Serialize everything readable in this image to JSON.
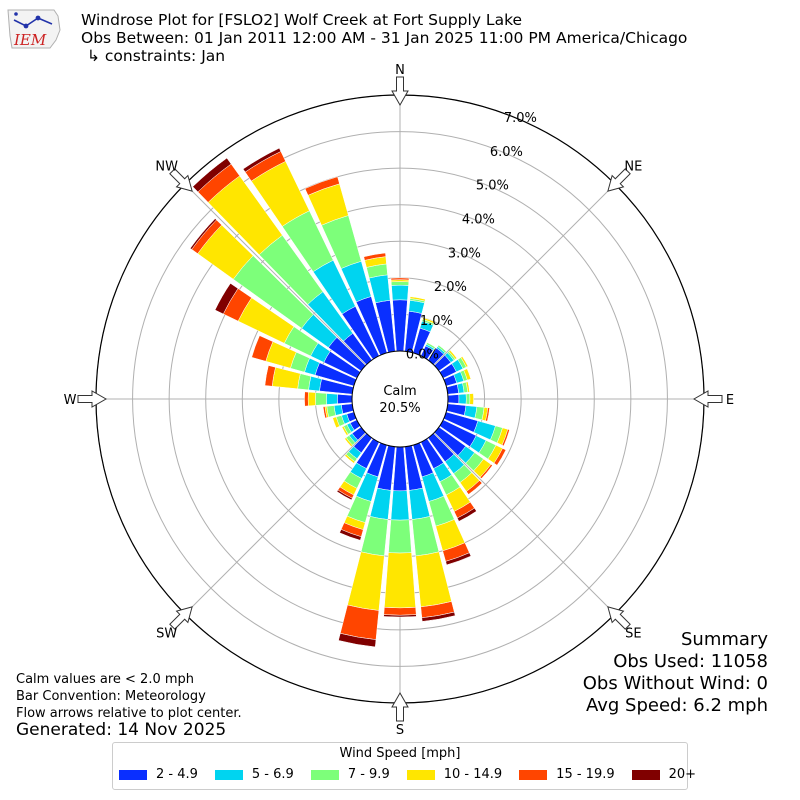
{
  "title": {
    "line1": "Windrose Plot for [FSLO2] Wolf Creek at Fort Supply Lake",
    "line2": "Obs Between: 01 Jan 2011 12:00 AM - 31 Jan 2025 11:00 PM America/Chicago",
    "line3": "↳ constraints: Jan"
  },
  "logo": {
    "text": "IEM"
  },
  "notes": {
    "calm_def": "Calm values are < 2.0 mph",
    "convention": "Bar Convention: Meteorology",
    "flow": "Flow arrows relative to plot center.",
    "generated": "Generated: 14 Nov 2025"
  },
  "summary": {
    "heading": "Summary",
    "obs_used": "Obs Used: 11058",
    "obs_without_wind": "Obs Without Wind: 0",
    "avg_speed": "Avg Speed: 6.2 mph"
  },
  "calm": {
    "label": "Calm",
    "value": "20.5%"
  },
  "chart_data": {
    "type": "windrose",
    "radial_ticks": [
      "0.0%",
      "1.0%",
      "2.0%",
      "3.0%",
      "4.0%",
      "5.0%",
      "6.0%",
      "7.0%"
    ],
    "radial_max": 7.0,
    "compass_labels": [
      "N",
      "NE",
      "E",
      "SE",
      "S",
      "SW",
      "W",
      "NW"
    ],
    "legend_title": "Wind Speed [mph]",
    "bins": [
      {
        "label": "2 - 4.9",
        "color": "#0a2fff"
      },
      {
        "label": "5 - 6.9",
        "color": "#00d4f0"
      },
      {
        "label": "7 - 9.9",
        "color": "#7dff7a"
      },
      {
        "label": "10 - 14.9",
        "color": "#ffe600"
      },
      {
        "label": "15 - 19.9",
        "color": "#ff4500"
      },
      {
        "label": "20+",
        "color": "#800000"
      }
    ],
    "directions_deg": [
      0,
      10,
      20,
      30,
      40,
      50,
      60,
      70,
      80,
      90,
      100,
      110,
      120,
      130,
      140,
      150,
      160,
      170,
      180,
      190,
      200,
      210,
      220,
      230,
      240,
      250,
      260,
      270,
      280,
      290,
      300,
      310,
      320,
      330,
      340,
      350
    ],
    "cumulative": [
      [
        1.4,
        1.8,
        1.9,
        1.95,
        2.0,
        2.0
      ],
      [
        1.1,
        1.4,
        1.45,
        1.5,
        1.5,
        1.5
      ],
      [
        0.7,
        0.9,
        0.95,
        1.0,
        1.0,
        1.0
      ],
      [
        0.3,
        0.35,
        0.4,
        0.4,
        0.4,
        0.4
      ],
      [
        0.4,
        0.45,
        0.5,
        0.5,
        0.5,
        0.5
      ],
      [
        0.4,
        0.5,
        0.55,
        0.6,
        0.6,
        0.6
      ],
      [
        0.4,
        0.6,
        0.7,
        0.75,
        0.75,
        0.75
      ],
      [
        0.3,
        0.5,
        0.6,
        0.7,
        0.7,
        0.7
      ],
      [
        0.3,
        0.45,
        0.55,
        0.6,
        0.6,
        0.6
      ],
      [
        0.3,
        0.5,
        0.6,
        0.7,
        0.7,
        0.7
      ],
      [
        0.5,
        0.8,
        1.0,
        1.1,
        1.15,
        1.15
      ],
      [
        0.9,
        1.4,
        1.6,
        1.75,
        1.8,
        1.8
      ],
      [
        1.0,
        1.3,
        1.6,
        1.8,
        1.9,
        1.9
      ],
      [
        0.9,
        1.2,
        1.5,
        1.75,
        1.8,
        1.8
      ],
      [
        0.8,
        1.2,
        1.5,
        1.8,
        1.9,
        1.9
      ],
      [
        0.8,
        1.2,
        1.6,
        2.1,
        2.3,
        2.4
      ],
      [
        0.9,
        1.6,
        2.3,
        3.0,
        3.3,
        3.4
      ],
      [
        1.2,
        2.0,
        3.0,
        4.4,
        4.7,
        4.8
      ],
      [
        1.2,
        2.0,
        2.9,
        4.4,
        4.6,
        4.65
      ],
      [
        1.2,
        2.0,
        3.0,
        4.5,
        5.3,
        5.5
      ],
      [
        0.9,
        1.6,
        2.2,
        2.4,
        2.6,
        2.7
      ],
      [
        0.8,
        1.1,
        1.4,
        1.6,
        1.7,
        1.75
      ],
      [
        0.5,
        0.7,
        0.8,
        0.85,
        0.85,
        0.85
      ],
      [
        0.3,
        0.4,
        0.5,
        0.55,
        0.55,
        0.55
      ],
      [
        0.2,
        0.3,
        0.4,
        0.45,
        0.45,
        0.45
      ],
      [
        0.2,
        0.35,
        0.5,
        0.6,
        0.6,
        0.6
      ],
      [
        0.3,
        0.5,
        0.7,
        0.75,
        0.8,
        0.8
      ],
      [
        0.4,
        0.7,
        1.0,
        1.2,
        1.3,
        1.3
      ],
      [
        0.9,
        1.2,
        1.5,
        2.2,
        2.4,
        2.4
      ],
      [
        1.1,
        1.4,
        1.8,
        2.5,
        2.9,
        2.9
      ],
      [
        1.0,
        1.4,
        2.2,
        3.6,
        4.05,
        4.3
      ],
      [
        1.1,
        2.0,
        4.3,
        5.5,
        5.7,
        5.75
      ],
      [
        0.9,
        2.3,
        4.2,
        6.2,
        6.6,
        6.8
      ],
      [
        1.5,
        2.9,
        4.4,
        5.9,
        6.2,
        6.3
      ],
      [
        1.6,
        2.6,
        3.9,
        4.8,
        5.0,
        5.0
      ],
      [
        1.4,
        2.1,
        2.4,
        2.6,
        2.7,
        2.7
      ]
    ]
  }
}
